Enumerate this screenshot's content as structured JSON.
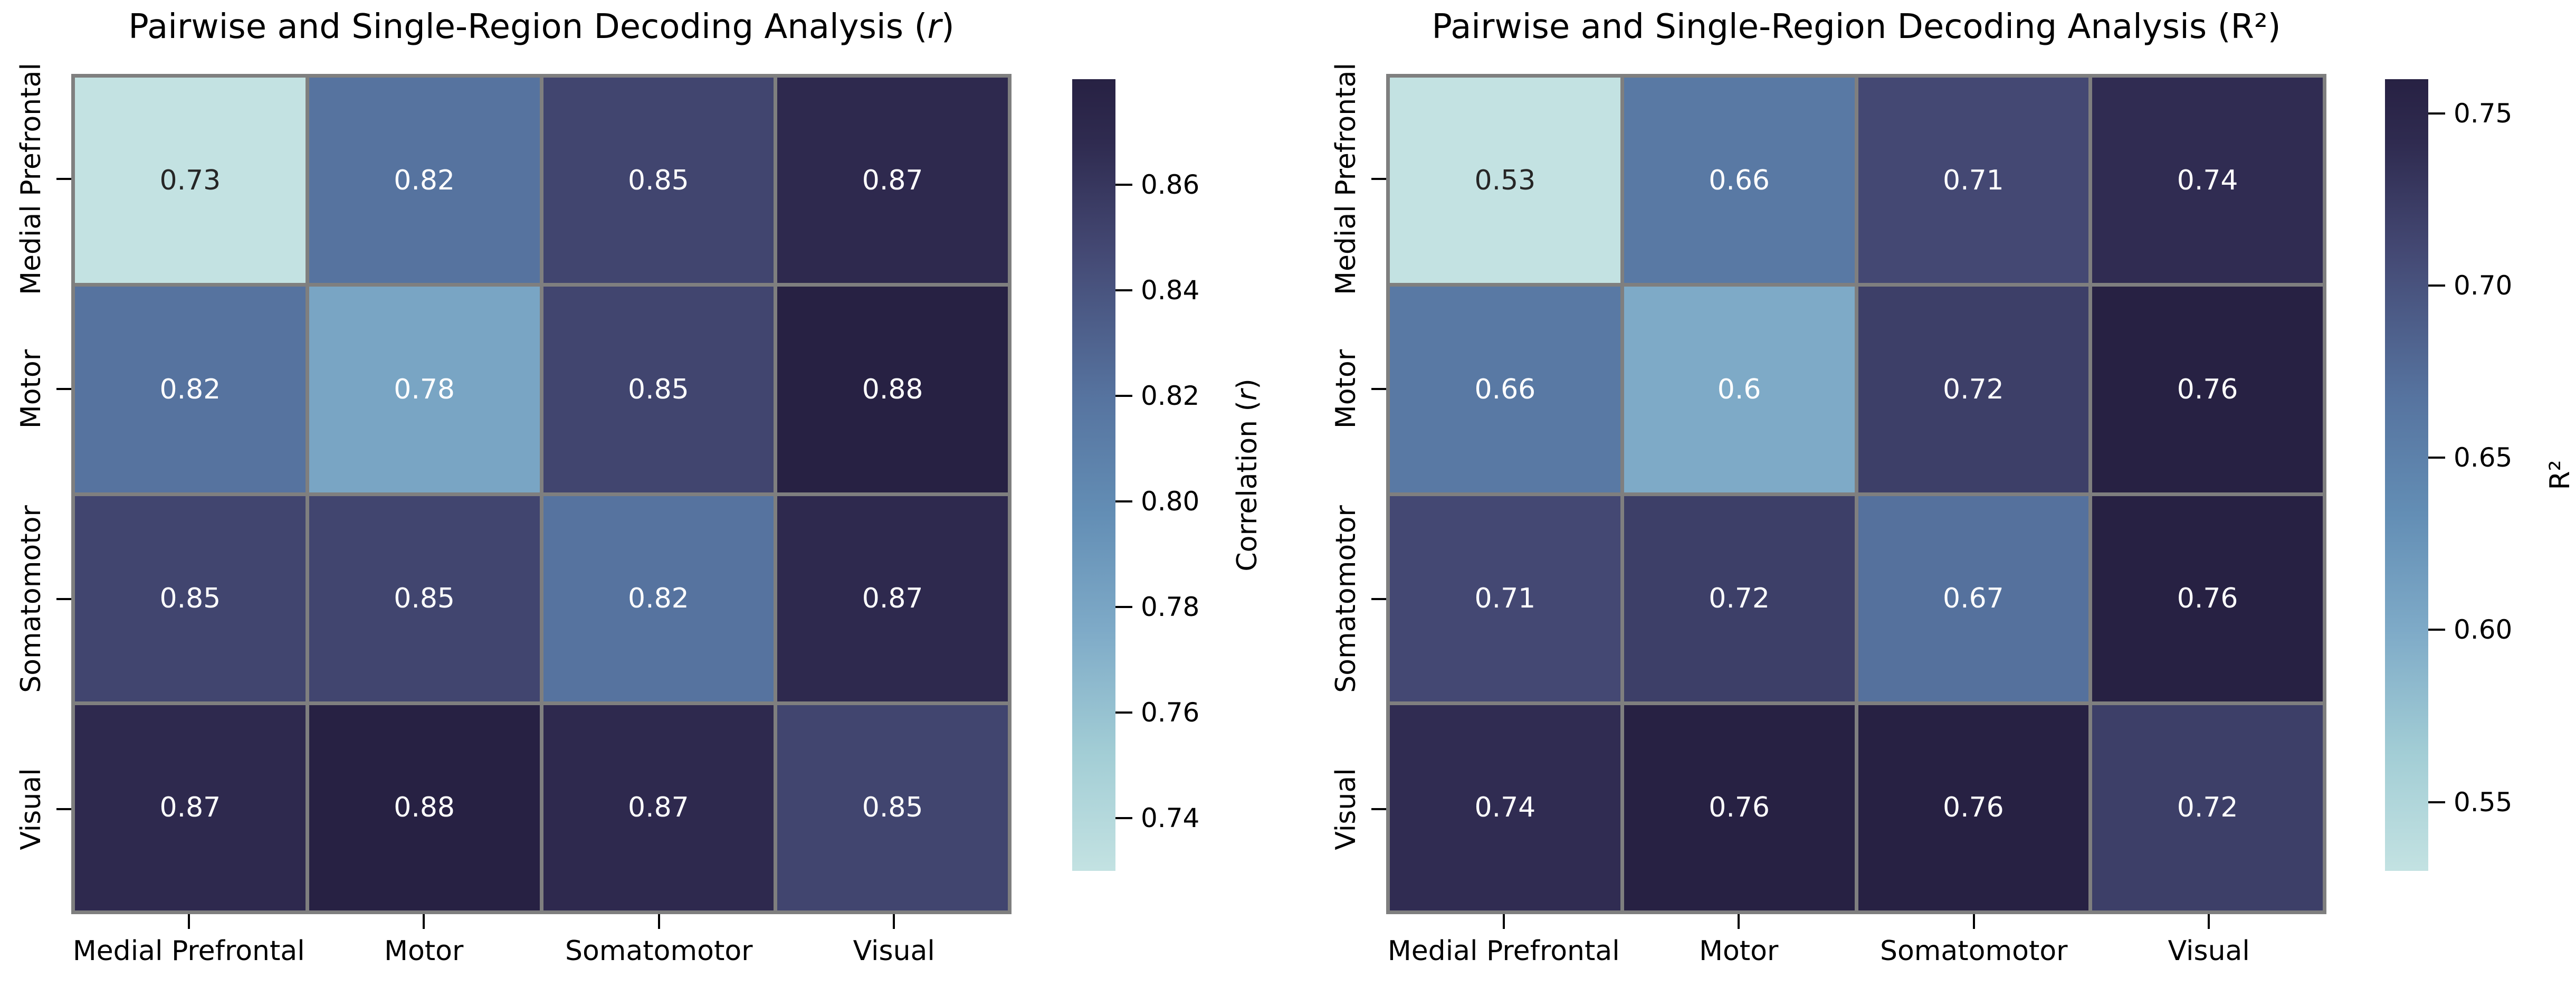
{
  "figure": {
    "background": "#ffffff",
    "grid_line_color": "#7f7f7f",
    "tick_color": "#000000",
    "annotation_light": "#ffffff",
    "annotation_dark": "#262626"
  },
  "colormap": {
    "stops": [
      [
        0.0,
        "#c3e2e2"
      ],
      [
        0.15,
        "#a2cdd5"
      ],
      [
        0.3,
        "#7fabc8"
      ],
      [
        0.45,
        "#638eb5"
      ],
      [
        0.6,
        "#56739f"
      ],
      [
        0.78,
        "#444974"
      ],
      [
        0.92,
        "#2f2b50"
      ],
      [
        1.0,
        "#272143"
      ]
    ]
  },
  "chart_data": [
    {
      "type": "heatmap",
      "title_prefix": "Pairwise and Single-Region Decoding Analysis (",
      "title_italic": "r",
      "title_suffix": ")",
      "x_categories": [
        "Medial Prefrontal",
        "Motor",
        "Somatomotor",
        "Visual"
      ],
      "y_categories": [
        "Medial Prefrontal",
        "Motor",
        "Somatomotor",
        "Visual"
      ],
      "values": [
        [
          0.73,
          0.82,
          0.85,
          0.87
        ],
        [
          0.82,
          0.78,
          0.85,
          0.88
        ],
        [
          0.85,
          0.85,
          0.82,
          0.87
        ],
        [
          0.87,
          0.88,
          0.87,
          0.85
        ]
      ],
      "vmin": 0.73,
      "vmax": 0.88,
      "colorbar": {
        "label_prefix": "Correlation (",
        "label_italic": "r",
        "label_suffix": ")",
        "ticks": [
          "0.86",
          "0.84",
          "0.82",
          "0.80",
          "0.78",
          "0.76",
          "0.74"
        ]
      }
    },
    {
      "type": "heatmap",
      "title_prefix": "Pairwise and Single-Region Decoding Analysis (R²)",
      "title_italic": "",
      "title_suffix": "",
      "x_categories": [
        "Medial Prefrontal",
        "Motor",
        "Somatomotor",
        "Visual"
      ],
      "y_categories": [
        "Medial Prefrontal",
        "Motor",
        "Somatomotor",
        "Visual"
      ],
      "values": [
        [
          0.53,
          0.66,
          0.71,
          0.74
        ],
        [
          0.66,
          0.6,
          0.72,
          0.76
        ],
        [
          0.71,
          0.72,
          0.67,
          0.76
        ],
        [
          0.74,
          0.76,
          0.76,
          0.72
        ]
      ],
      "vmin": 0.53,
      "vmax": 0.76,
      "colorbar": {
        "label_prefix": "R²",
        "label_italic": "",
        "label_suffix": "",
        "ticks": [
          "0.75",
          "0.70",
          "0.65",
          "0.60",
          "0.55"
        ]
      }
    }
  ]
}
